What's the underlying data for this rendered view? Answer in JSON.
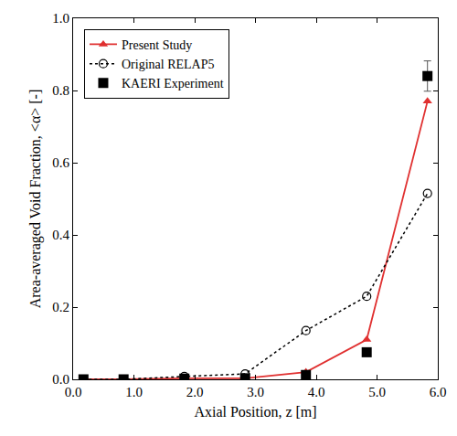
{
  "chart_data": {
    "type": "line",
    "x_label": "Axial Position, z [m]",
    "y_label": "Area-averaged Void Fraction, <α> [-]",
    "xlim": [
      0,
      6
    ],
    "xticks": [
      {
        "value": 0,
        "label": "0.0"
      },
      {
        "value": 1,
        "label": "1.0"
      },
      {
        "value": 2,
        "label": "2.0"
      },
      {
        "value": 3,
        "label": "3.0"
      },
      {
        "value": 4,
        "label": "4.0"
      },
      {
        "value": 5,
        "label": "5.0"
      },
      {
        "value": 6,
        "label": "6.0"
      }
    ],
    "ylim": [
      0,
      1
    ],
    "yticks": [
      {
        "value": 0,
        "label": "0.0"
      },
      {
        "value": 0.2,
        "label": "0.2"
      },
      {
        "value": 0.4,
        "label": "0.4"
      },
      {
        "value": 0.6,
        "label": "0.6"
      },
      {
        "value": 0.8,
        "label": "0.8"
      },
      {
        "value": 1,
        "label": "1.0"
      }
    ],
    "grid": false,
    "legend": "upper left",
    "series": [
      {
        "name": "Present Study",
        "type": "line",
        "color": "#e03030",
        "marker": "triangle",
        "line_style": "solid",
        "x": [
          0.17,
          0.83,
          1.83,
          2.83,
          3.83,
          4.83,
          5.83
        ],
        "values": [
          0.0,
          0.0,
          0.003,
          0.003,
          0.02,
          0.11,
          0.77
        ]
      },
      {
        "name": "Original RELAP5",
        "type": "line",
        "color": "#000000",
        "marker": "open circle",
        "line_style": "dotted",
        "x": [
          0.17,
          0.83,
          1.83,
          2.83,
          3.83,
          4.83,
          5.83
        ],
        "values": [
          0.0,
          0.0,
          0.008,
          0.015,
          0.135,
          0.23,
          0.515
        ]
      },
      {
        "name": "KAERI Experiment",
        "type": "scatter",
        "color": "#000000",
        "marker": "square",
        "line_style": "none",
        "x": [
          0.17,
          0.83,
          1.83,
          2.83,
          3.83,
          4.83,
          5.83
        ],
        "values": [
          0.0,
          0.0,
          0.002,
          0.003,
          0.012,
          0.075,
          0.84
        ],
        "error": [
          0,
          0,
          0,
          0,
          0,
          0,
          0.042
        ]
      }
    ]
  }
}
